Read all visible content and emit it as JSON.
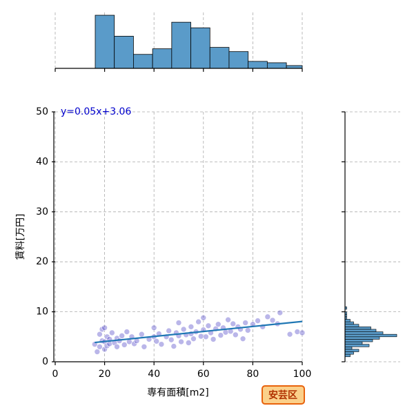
{
  "chart_data": {
    "type": "joint",
    "x_label": "専有面積[m2]",
    "y_label": "賃料[万円]",
    "annotation": "安芸区",
    "regression": {
      "slope": 0.05,
      "intercept": 3.06,
      "label": "y=0.05x+3.06",
      "color": "#1f77b4"
    },
    "xlim": [
      0,
      100
    ],
    "xticks": [
      0,
      20,
      40,
      60,
      80,
      100
    ],
    "ylim": [
      0,
      50
    ],
    "yticks": [
      0,
      10,
      20,
      30,
      40,
      50
    ],
    "grid": true,
    "scatter": {
      "color": "#3a2fbf",
      "x": [
        16,
        17,
        18,
        18,
        19,
        19,
        20,
        20,
        20,
        21,
        21,
        22,
        22,
        23,
        24,
        25,
        25,
        26,
        27,
        28,
        29,
        30,
        31,
        32,
        33,
        35,
        36,
        38,
        40,
        40,
        41,
        42,
        43,
        45,
        46,
        47,
        48,
        49,
        50,
        50,
        51,
        52,
        53,
        54,
        55,
        55,
        56,
        57,
        58,
        59,
        60,
        60,
        61,
        62,
        63,
        64,
        65,
        66,
        67,
        68,
        69,
        70,
        71,
        72,
        73,
        74,
        75,
        76,
        77,
        78,
        80,
        82,
        84,
        86,
        88,
        90,
        91,
        95,
        98,
        100
      ],
      "y": [
        3.5,
        2.0,
        5.5,
        3.0,
        6.5,
        4.2,
        2.5,
        6.8,
        4.0,
        5.0,
        3.2,
        4.5,
        3.6,
        5.8,
        3.8,
        4.7,
        3.0,
        4.2,
        5.2,
        3.4,
        6.0,
        4.0,
        5.0,
        3.6,
        4.2,
        5.5,
        3.0,
        4.5,
        6.8,
        5.0,
        4.1,
        5.6,
        3.5,
        5.0,
        6.2,
        4.4,
        3.1,
        5.8,
        7.8,
        5.2,
        4.0,
        6.5,
        5.4,
        3.8,
        7.0,
        5.6,
        4.6,
        6.0,
        8.0,
        5.1,
        8.8,
        6.4,
        5.0,
        7.2,
        5.8,
        4.5,
        6.6,
        7.5,
        5.3,
        6.8,
        5.9,
        8.4,
        6.1,
        7.6,
        5.4,
        7.0,
        6.5,
        4.6,
        7.8,
        6.3,
        7.5,
        8.2,
        7.0,
        9.0,
        8.3,
        7.6,
        9.8,
        5.5,
        6.0,
        5.8
      ]
    },
    "x_hist": {
      "color": "#5a9bc9",
      "bins": [
        16.2,
        23.94,
        31.68,
        39.42,
        47.16,
        54.9,
        62.64,
        70.38,
        78.12,
        85.86,
        93.6,
        101.34
      ],
      "counts": [
        38,
        23,
        10,
        14,
        33,
        29,
        15,
        12,
        5,
        4,
        2
      ],
      "ylim": [
        0,
        40
      ]
    },
    "y_hist": {
      "color": "#5a9bc9",
      "bins": [
        1.0,
        1.5,
        2.0,
        2.5,
        3.0,
        3.5,
        4.0,
        4.5,
        5.0,
        5.5,
        6.0,
        6.5,
        7.0,
        7.5,
        8.0,
        8.5,
        9.0,
        9.5,
        10.0,
        10.5,
        11.0
      ],
      "counts": [
        3,
        5,
        8,
        4,
        14,
        10,
        16,
        20,
        30,
        22,
        18,
        15,
        8,
        5,
        3,
        1,
        1,
        1,
        0,
        1
      ],
      "xlim": [
        0,
        32
      ]
    }
  }
}
